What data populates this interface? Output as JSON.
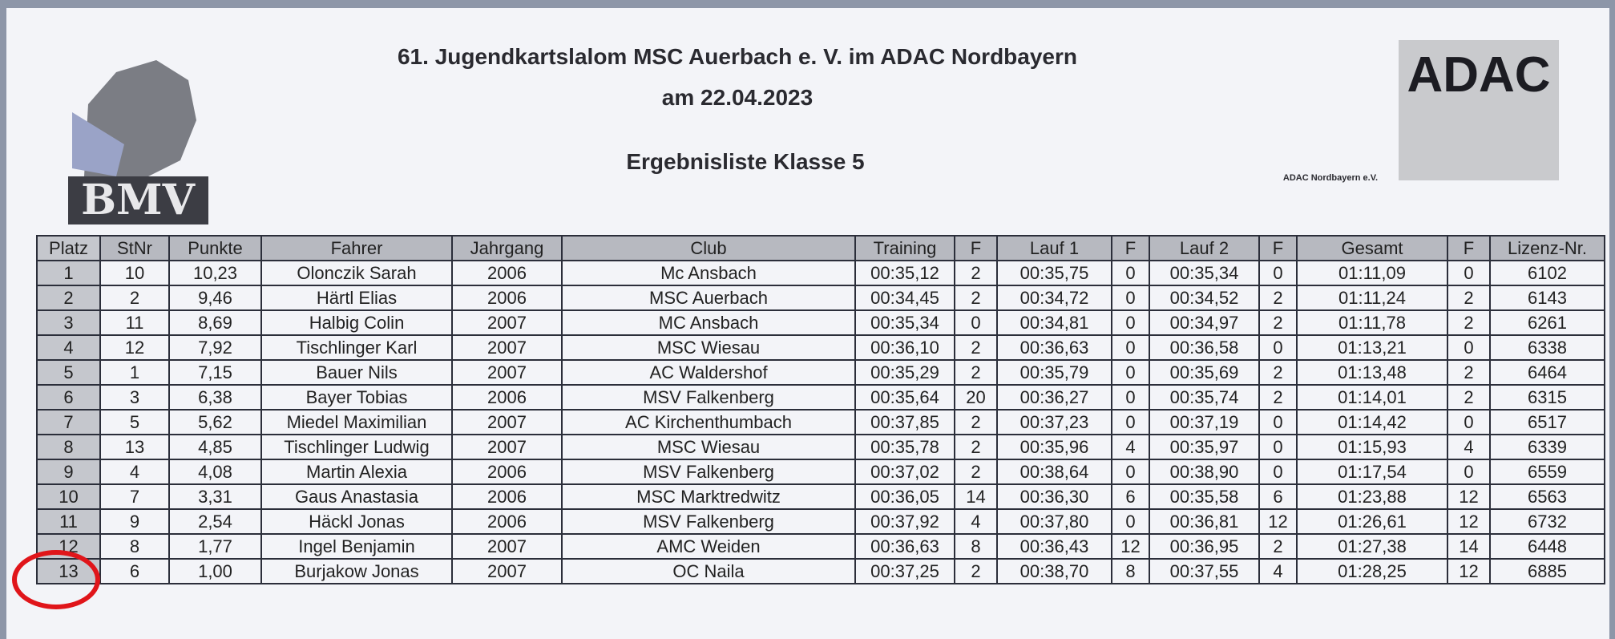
{
  "header": {
    "title_line1": "61. Jugendkartslalom MSC Auerbach e. V. im ADAC Nordbayern",
    "title_line2": "am 22.04.2023",
    "subtitle": "Ergebnisliste Klasse 5",
    "left_logo": "BMV",
    "right_logo": "ADAC",
    "right_logo_caption": "ADAC Nordbayern e.V."
  },
  "table": {
    "columns": [
      "Platz",
      "StNr",
      "Punkte",
      "Fahrer",
      "Jahrgang",
      "Club",
      "Training",
      "F",
      "Lauf 1",
      "F",
      "Lauf 2",
      "F",
      "Gesamt",
      "F",
      "Lizenz-Nr."
    ],
    "rows": [
      [
        "1",
        "10",
        "10,23",
        "Olonczik Sarah",
        "2006",
        "Mc Ansbach",
        "00:35,12",
        "2",
        "00:35,75",
        "0",
        "00:35,34",
        "0",
        "01:11,09",
        "0",
        "6102"
      ],
      [
        "2",
        "2",
        "9,46",
        "Härtl Elias",
        "2006",
        "MSC Auerbach",
        "00:34,45",
        "2",
        "00:34,72",
        "0",
        "00:34,52",
        "2",
        "01:11,24",
        "2",
        "6143"
      ],
      [
        "3",
        "11",
        "8,69",
        "Halbig Colin",
        "2007",
        "MC Ansbach",
        "00:35,34",
        "0",
        "00:34,81",
        "0",
        "00:34,97",
        "2",
        "01:11,78",
        "2",
        "6261"
      ],
      [
        "4",
        "12",
        "7,92",
        "Tischlinger Karl",
        "2007",
        "MSC Wiesau",
        "00:36,10",
        "2",
        "00:36,63",
        "0",
        "00:36,58",
        "0",
        "01:13,21",
        "0",
        "6338"
      ],
      [
        "5",
        "1",
        "7,15",
        "Bauer Nils",
        "2007",
        "AC Waldershof",
        "00:35,29",
        "2",
        "00:35,79",
        "0",
        "00:35,69",
        "2",
        "01:13,48",
        "2",
        "6464"
      ],
      [
        "6",
        "3",
        "6,38",
        "Bayer Tobias",
        "2006",
        "MSV Falkenberg",
        "00:35,64",
        "20",
        "00:36,27",
        "0",
        "00:35,74",
        "2",
        "01:14,01",
        "2",
        "6315"
      ],
      [
        "7",
        "5",
        "5,62",
        "Miedel Maximilian",
        "2007",
        "AC Kirchenthumbach",
        "00:37,85",
        "2",
        "00:37,23",
        "0",
        "00:37,19",
        "0",
        "01:14,42",
        "0",
        "6517"
      ],
      [
        "8",
        "13",
        "4,85",
        "Tischlinger Ludwig",
        "2007",
        "MSC Wiesau",
        "00:35,78",
        "2",
        "00:35,96",
        "4",
        "00:35,97",
        "0",
        "01:15,93",
        "4",
        "6339"
      ],
      [
        "9",
        "4",
        "4,08",
        "Martin Alexia",
        "2006",
        "MSV Falkenberg",
        "00:37,02",
        "2",
        "00:38,64",
        "0",
        "00:38,90",
        "0",
        "01:17,54",
        "0",
        "6559"
      ],
      [
        "10",
        "7",
        "3,31",
        "Gaus Anastasia",
        "2006",
        "MSC Marktredwitz",
        "00:36,05",
        "14",
        "00:36,30",
        "6",
        "00:35,58",
        "6",
        "01:23,88",
        "12",
        "6563"
      ],
      [
        "11",
        "9",
        "2,54",
        "Häckl Jonas",
        "2006",
        "MSV Falkenberg",
        "00:37,92",
        "4",
        "00:37,80",
        "0",
        "00:36,81",
        "12",
        "01:26,61",
        "12",
        "6732"
      ],
      [
        "12",
        "8",
        "1,77",
        "Ingel Benjamin",
        "2007",
        "AMC Weiden",
        "00:36,63",
        "8",
        "00:36,43",
        "12",
        "00:36,95",
        "2",
        "01:27,38",
        "14",
        "6448"
      ],
      [
        "13",
        "6",
        "1,00",
        "Burjakow Jonas",
        "2007",
        "OC Naila",
        "00:37,25",
        "2",
        "00:38,70",
        "8",
        "00:37,55",
        "4",
        "01:28,25",
        "12",
        "6885"
      ]
    ]
  }
}
